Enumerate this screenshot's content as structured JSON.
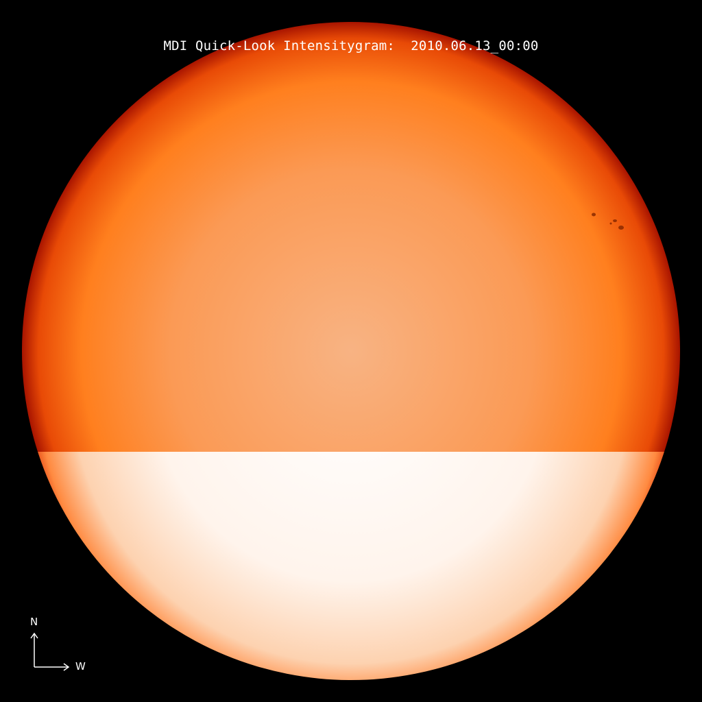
{
  "title": "MDI Quick-Look Intensitygram:  2010.06.13_00:00",
  "compass": {
    "north_label": "N",
    "west_label": "W"
  },
  "colors": {
    "background": "#000000",
    "disk_center": "#f8b07a",
    "disk_mid": "#ff7f1e",
    "disk_limb": "#b01800",
    "lower_band_center": "#ffffff",
    "lower_band_limb": "#ff5a10"
  }
}
